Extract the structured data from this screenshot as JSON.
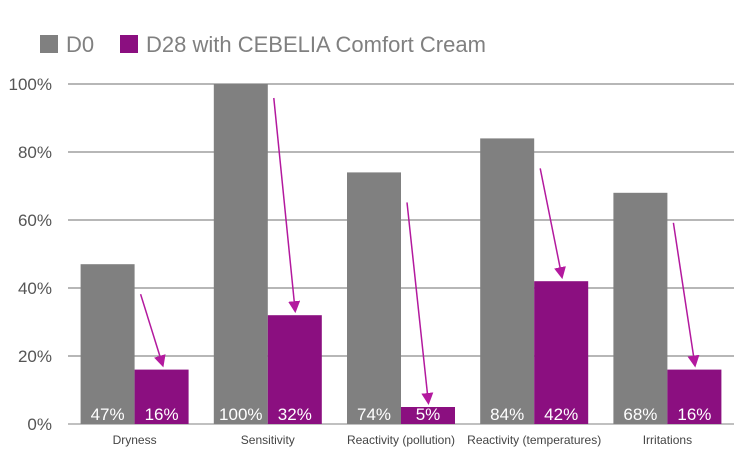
{
  "chart_data": {
    "type": "bar",
    "categories": [
      "Dryness",
      "Sensitivity",
      "Reactivity (pollution)",
      "Reactivity (temperatures)",
      "Irritations"
    ],
    "series": [
      {
        "name": "D0",
        "values": [
          47,
          100,
          74,
          84,
          68
        ],
        "labels": [
          "47%",
          "100%",
          "74%",
          "84%",
          "68%"
        ],
        "color": "#808080"
      },
      {
        "name": "D28 with CEBELIA Comfort Cream",
        "values": [
          16,
          32,
          5,
          42,
          16
        ],
        "labels": [
          "16%",
          "32%",
          "5%",
          "42%",
          "16%"
        ],
        "color": "#8b0f80"
      }
    ],
    "yticks": [
      "0%",
      "20%",
      "40%",
      "60%",
      "80%",
      "100%"
    ],
    "ylim": [
      0,
      100
    ],
    "grid": true,
    "legend": "top-left",
    "arrow_color": "#b3199e",
    "title": "",
    "xlabel": "",
    "ylabel": ""
  }
}
